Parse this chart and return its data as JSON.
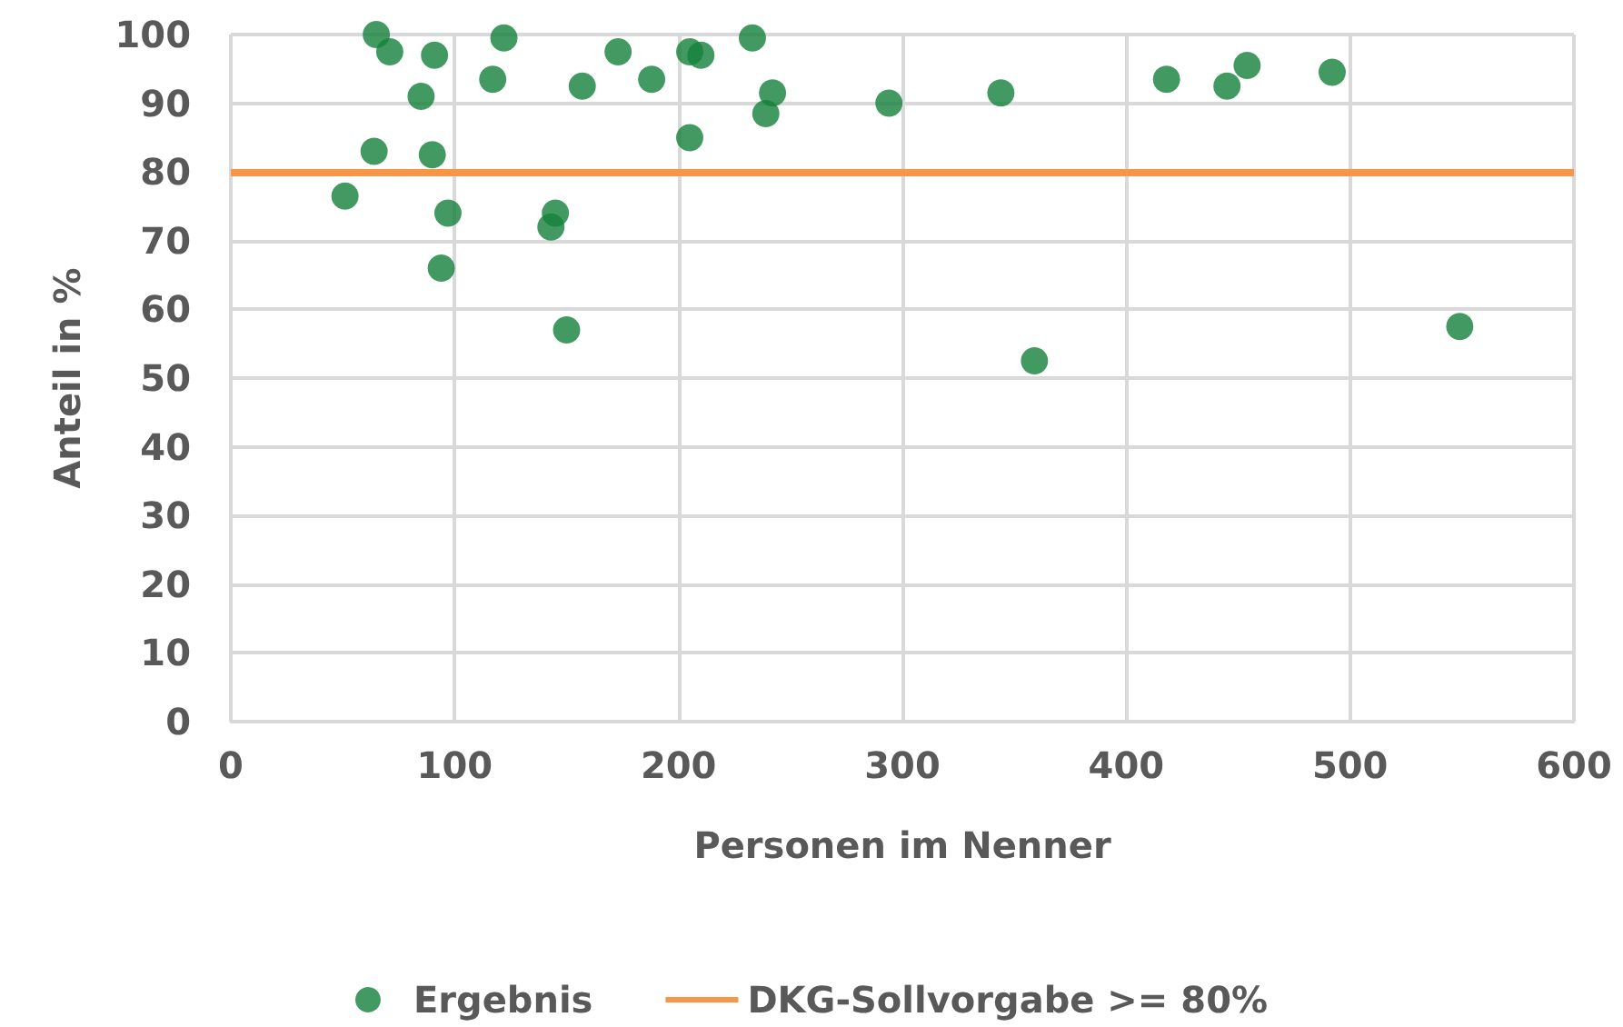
{
  "chart_data": {
    "type": "scatter",
    "xlabel": "Personen im Nenner",
    "ylabel": "Anteil in %",
    "series": [
      {
        "name": "Ergebnis",
        "color": "#13813b",
        "x": [
          51,
          65,
          71,
          64,
          85,
          91,
          90,
          97,
          94,
          117,
          122,
          143,
          145,
          150,
          157,
          173,
          188,
          205,
          205,
          210,
          233,
          239,
          242,
          294,
          344,
          359,
          418,
          445,
          454,
          492,
          549
        ],
        "values": [
          76.5,
          100,
          97.5,
          83,
          91,
          97,
          82.5,
          74,
          66,
          93.5,
          99.5,
          72,
          74,
          57,
          92.5,
          97.5,
          93.5,
          85,
          97.5,
          97,
          99.5,
          88.5,
          91.5,
          90,
          91.5,
          52.5,
          93.5,
          92.5,
          95.5,
          94.5,
          57.5
        ]
      }
    ],
    "ref_lines": [
      {
        "axis": "y",
        "value": 80,
        "label": "DKG-Sollvorgabe >= 80%",
        "color": "#f79646",
        "line_style": "solid"
      }
    ],
    "xlim": [
      0,
      600
    ],
    "xticks": [
      0,
      100,
      200,
      300,
      400,
      500,
      600
    ],
    "ylim": [
      0,
      100
    ],
    "yticks": [
      0,
      10,
      20,
      30,
      40,
      50,
      60,
      70,
      80,
      90,
      100
    ],
    "grid": true,
    "legend": "bottom",
    "marker": "circle"
  }
}
